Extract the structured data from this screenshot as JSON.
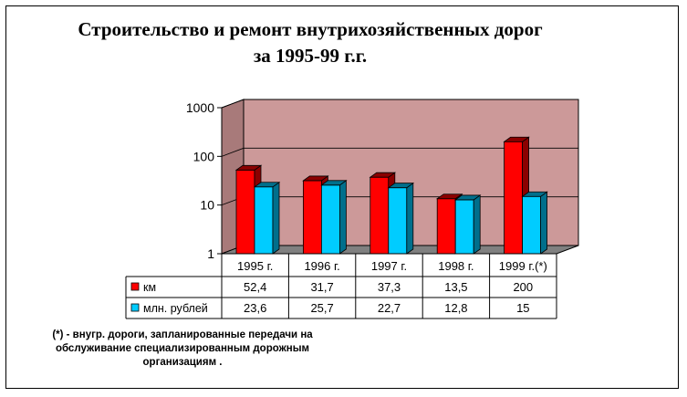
{
  "chart_data": {
    "type": "bar",
    "title_lines": [
      "Строительство и ремонт внутрихозяйственных дорог",
      "за 1995-99 г.г."
    ],
    "categories": [
      "1995 г.",
      "1996 г.",
      "1997 г.",
      "1998 г.",
      "1999 г.(*)"
    ],
    "series": [
      {
        "name": "км",
        "values": [
          52.4,
          31.7,
          37.3,
          13.5,
          200
        ],
        "labels": [
          "52,4",
          "31,7",
          "37,3",
          "13,5",
          "200"
        ],
        "color": "#ff0000",
        "side_color": "#8b0000"
      },
      {
        "name": "млн. рублей",
        "values": [
          23.6,
          25.7,
          22.7,
          12.8,
          15
        ],
        "labels": [
          "23,6",
          "25,7",
          "22,7",
          "12,8",
          "15"
        ],
        "color": "#00ccff",
        "side_color": "#006f8c"
      }
    ],
    "y_scale": "log",
    "ylim": [
      1,
      1000
    ],
    "y_ticks": [
      "1",
      "10",
      "100",
      "1000"
    ],
    "plot_background": "#cc9999",
    "grid": true,
    "legend": "data-table"
  },
  "footnote": [
    "(*) - внугр. дороги, запланированные передачи на",
    "обслуживание специализированным дорожным",
    "организациям ."
  ]
}
